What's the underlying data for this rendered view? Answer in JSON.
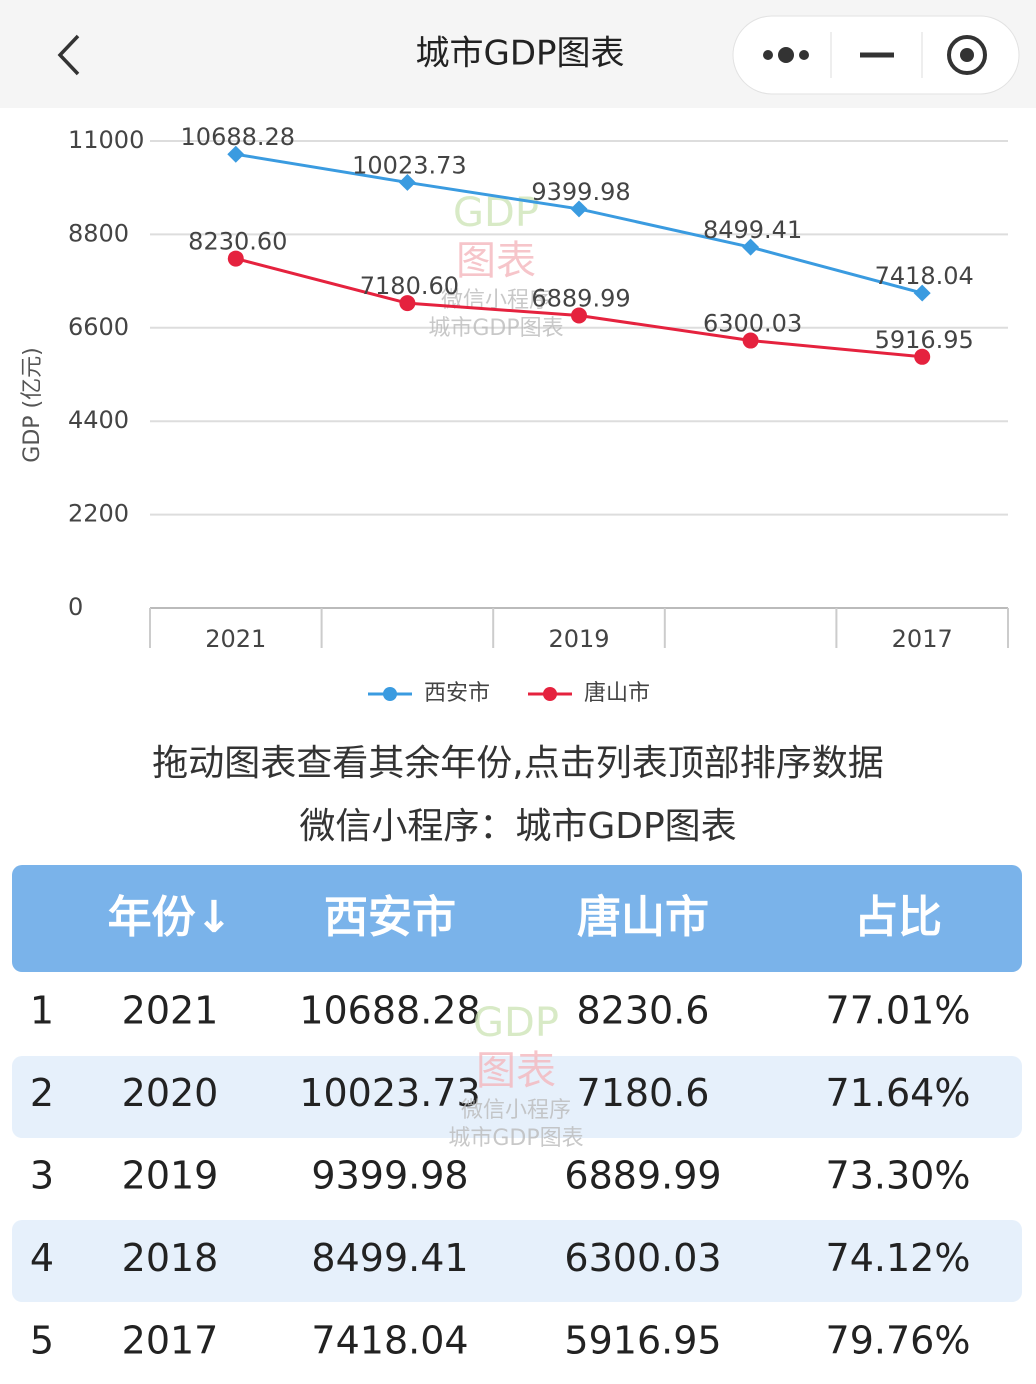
{
  "header": {
    "title": "城市GDP图表"
  },
  "chart_data": {
    "type": "line",
    "y_label": "GDP (亿元)",
    "categories": [
      "2021",
      null,
      "2019",
      null,
      "2017"
    ],
    "series": [
      {
        "name": "西安市",
        "color": "#3a9be0",
        "marker": "diamond",
        "values": [
          10688.28,
          10023.73,
          9399.98,
          8499.41,
          7418.04
        ]
      },
      {
        "name": "唐山市",
        "color": "#e5223e",
        "marker": "circle",
        "values": [
          8230.6,
          7180.6,
          6889.99,
          6300.03,
          5916.95
        ],
        "value_labels": [
          "8230.60",
          "7180.60",
          "6889.99",
          "6300.03",
          "5916.95"
        ]
      }
    ],
    "ylim": [
      0,
      11000
    ],
    "yticks": [
      0,
      2200,
      4400,
      6600,
      8800,
      11000
    ],
    "grid": true,
    "legend": "bottom"
  },
  "watermark": [
    "GDP",
    "图表",
    "微信小程序",
    "城市GDP图表"
  ],
  "hints": [
    "拖动图表查看其余年份,点击列表顶部排序数据",
    "微信小程序：城市GDP图表"
  ],
  "table": {
    "header": [
      "年份↓",
      "西安市",
      "唐山市",
      "占比"
    ],
    "rows": [
      [
        "1",
        "2021",
        "10688.28",
        "8230.6",
        "77.01%"
      ],
      [
        "2",
        "2020",
        "10023.73",
        "7180.6",
        "71.64%"
      ],
      [
        "3",
        "2019",
        "9399.98",
        "6889.99",
        "73.30%"
      ],
      [
        "4",
        "2018",
        "8499.41",
        "6300.03",
        "74.12%"
      ],
      [
        "5",
        "2017",
        "7418.04",
        "5916.95",
        "79.76%"
      ]
    ]
  }
}
